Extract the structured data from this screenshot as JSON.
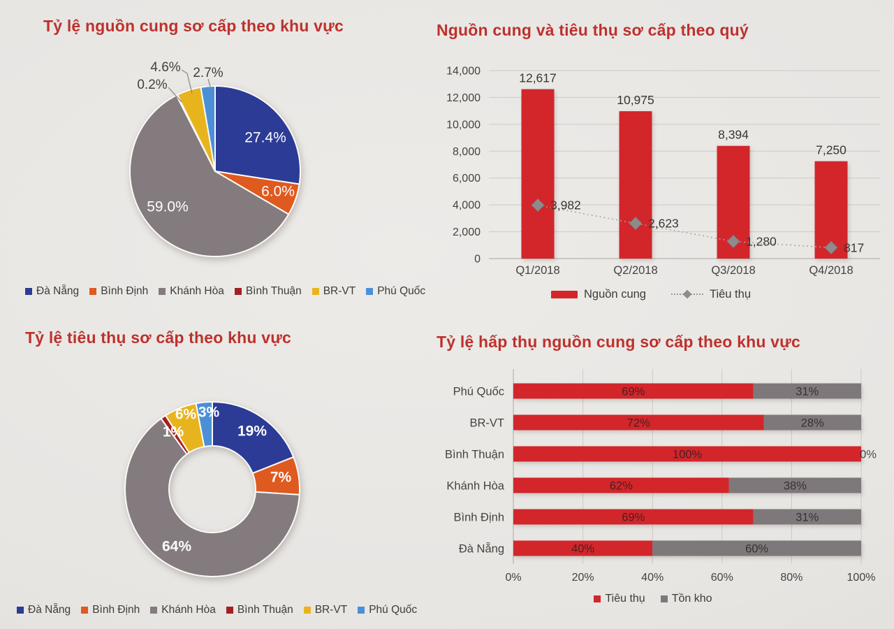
{
  "chart_data": [
    {
      "id": "supply-share-by-region",
      "type": "pie",
      "title": "Tỷ lệ nguồn cung sơ cấp theo khu vực",
      "categories": [
        "Đà Nẵng",
        "Bình Định",
        "Khánh Hòa",
        "Bình Thuận",
        "BR-VT",
        "Phú Quốc"
      ],
      "values": [
        27.4,
        6.0,
        59.0,
        0.2,
        4.6,
        2.7
      ],
      "labels": [
        "27.4%",
        "6.0%",
        "59.0%",
        "0.2%",
        "4.6%",
        "2.7%"
      ],
      "colors": [
        "#2c3b95",
        "#df5a1e",
        "#847b7e",
        "#a32020",
        "#e8b41e",
        "#4b90d7"
      ],
      "legend_position": "bottom"
    },
    {
      "id": "quarterly-supply-consumption",
      "type": "bar",
      "title": "Nguồn cung và tiêu thụ sơ cấp theo quý",
      "categories": [
        "Q1/2018",
        "Q2/2018",
        "Q3/2018",
        "Q4/2018"
      ],
      "series": [
        {
          "name": "Nguồn cung",
          "type": "bar",
          "color": "#d2262b",
          "values": [
            12617,
            10975,
            8394,
            7250
          ],
          "labels": [
            "12,617",
            "10,975",
            "8,394",
            "7,250"
          ]
        },
        {
          "name": "Tiêu thụ",
          "type": "line",
          "color": "#8f8b8d",
          "values": [
            3982,
            2623,
            1280,
            817
          ],
          "labels": [
            "3,982",
            "2,623",
            "1,280",
            "817"
          ]
        }
      ],
      "ylim": [
        0,
        14000
      ],
      "y_ticks": [
        "0",
        "2,000",
        "4,000",
        "6,000",
        "8,000",
        "10,000",
        "12,000",
        "14,000"
      ],
      "grid": true,
      "legend_position": "bottom"
    },
    {
      "id": "consumption-share-by-region",
      "type": "pie",
      "subtype": "donut",
      "title": "Tỷ lệ tiêu thụ sơ cấp theo khu vực",
      "categories": [
        "Đà Nẵng",
        "Bình Định",
        "Khánh Hòa",
        "Bình Thuận",
        "BR-VT",
        "Phú Quốc"
      ],
      "values": [
        19,
        7,
        64,
        1,
        6,
        3
      ],
      "labels": [
        "19%",
        "7%",
        "64%",
        "1%",
        "6%",
        "3%"
      ],
      "colors": [
        "#2c3b95",
        "#df5a1e",
        "#847b7e",
        "#a32020",
        "#e8b41e",
        "#4b90d7"
      ],
      "legend_position": "bottom"
    },
    {
      "id": "absorption-rate-by-region",
      "type": "bar",
      "subtype": "horizontal-stacked",
      "title": "Tỷ lệ hấp thụ nguồn cung sơ cấp theo khu vực",
      "categories": [
        "Phú Quốc",
        "BR-VT",
        "Bình Thuận",
        "Khánh Hòa",
        "Bình Định",
        "Đà Nẵng"
      ],
      "series": [
        {
          "name": "Tiêu thụ",
          "color": "#d2262b",
          "values": [
            69,
            72,
            100,
            62,
            69,
            40
          ],
          "labels": [
            "69%",
            "72%",
            "100%",
            "62%",
            "69%",
            "40%"
          ]
        },
        {
          "name": "Tồn kho",
          "color": "#7e787b",
          "values": [
            31,
            28,
            0,
            38,
            31,
            60
          ],
          "labels": [
            "31%",
            "28%",
            "0%",
            "38%",
            "31%",
            "60%"
          ]
        }
      ],
      "xlim": [
        0,
        100
      ],
      "x_ticks": [
        "0%",
        "20%",
        "40%",
        "60%",
        "80%",
        "100%"
      ],
      "grid": true,
      "legend_position": "bottom"
    }
  ]
}
